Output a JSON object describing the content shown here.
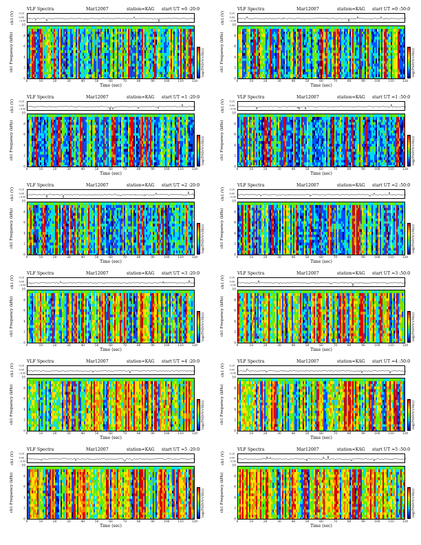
{
  "chart_data": [
    {
      "type": "heatmap",
      "label": "VLF Spectra",
      "date": "Mar12007",
      "station": "station=KAG",
      "start": "start UT =0 :20:0",
      "trace_label": "ch1 (V)",
      "ylabel": "ch1 Frequency (kHz)",
      "xlabel": "Time (sec)",
      "colorbar_label": "log(PSD(V/√Hz))",
      "x_ticks": [
        "0",
        "10",
        "20",
        "30",
        "40",
        "50",
        "60",
        "70",
        "80",
        "90",
        "100",
        "110",
        "120"
      ],
      "y_ticks": [
        "0",
        "2",
        "4",
        "6",
        "8",
        "10"
      ],
      "trace_ticks": [
        "0.20",
        "0.00",
        "−0.50"
      ],
      "colorbar_ticks": [
        "",
        "",
        ""
      ],
      "xlim": [
        0,
        120
      ],
      "ylim": [
        0,
        10
      ],
      "intensity": 0.55
    },
    {
      "type": "heatmap",
      "label": "VLF Spectra",
      "date": "Mar12007",
      "station": "station=KAG",
      "start": "start UT =0 :50:0",
      "trace_label": "ch1 (V)",
      "ylabel": "ch1 Frequency (kHz)",
      "xlabel": "Time (sec)",
      "colorbar_label": "log(PSD(V/√Hz))",
      "x_ticks": [
        "0",
        "10",
        "20",
        "30",
        "40",
        "50",
        "60",
        "70",
        "80",
        "90",
        "100",
        "110",
        "120"
      ],
      "y_ticks": [
        "0",
        "2",
        "4",
        "6",
        "8",
        "10"
      ],
      "trace_ticks": [
        "0.20",
        "0.00",
        "−0.50"
      ],
      "colorbar_ticks": [
        "",
        "",
        ""
      ],
      "xlim": [
        0,
        120
      ],
      "ylim": [
        0,
        10
      ],
      "intensity": 0.55
    },
    {
      "type": "heatmap",
      "label": "VLF Spectra",
      "date": "Mar12007",
      "station": "station=KAG",
      "start": "start UT =1 :20:0",
      "trace_label": "ch1 (V)",
      "ylabel": "ch1 Frequency (kHz)",
      "xlabel": "Time (sec)",
      "colorbar_label": "log(PSD(V/√Hz))",
      "x_ticks": [
        "0",
        "10",
        "20",
        "30",
        "40",
        "50",
        "60",
        "70",
        "80",
        "90",
        "100",
        "110",
        "120"
      ],
      "y_ticks": [
        "0",
        "2",
        "4",
        "6",
        "8",
        "10"
      ],
      "trace_ticks": [
        "0.20",
        "0.00",
        "−0.50"
      ],
      "colorbar_ticks": [
        "",
        "",
        ""
      ],
      "xlim": [
        0,
        120
      ],
      "ylim": [
        0,
        10
      ],
      "intensity": 0.45
    },
    {
      "type": "heatmap",
      "label": "VLF Spectra",
      "date": "Mar12007",
      "station": "station=KAG",
      "start": "start UT =1 :50:0",
      "trace_label": "ch1 (V)",
      "ylabel": "ch1 Frequency (kHz)",
      "xlabel": "Time (sec)",
      "colorbar_label": "log(PSD(V/√Hz))",
      "x_ticks": [
        "0",
        "10",
        "20",
        "30",
        "40",
        "50",
        "60",
        "70",
        "80",
        "90",
        "100",
        "110",
        "120"
      ],
      "y_ticks": [
        "0",
        "2",
        "4",
        "6",
        "8",
        "10"
      ],
      "trace_ticks": [
        "0.20",
        "0.00",
        "−0.50"
      ],
      "colorbar_ticks": [
        "",
        "",
        ""
      ],
      "xlim": [
        0,
        120
      ],
      "ylim": [
        0,
        10
      ],
      "intensity": 0.42
    },
    {
      "type": "heatmap",
      "label": "VLF Spectra",
      "date": "Mar12007",
      "station": "station=KAG",
      "start": "start UT =2 :20:0",
      "trace_label": "ch1 (V)",
      "ylabel": "ch1 Frequency (kHz)",
      "xlabel": "Time (sec)",
      "colorbar_label": "log(PSD(V/√Hz))",
      "x_ticks": [
        "0",
        "10",
        "20",
        "30",
        "40",
        "50",
        "60",
        "70",
        "80",
        "90",
        "100",
        "110",
        "120"
      ],
      "y_ticks": [
        "0",
        "2",
        "4",
        "6",
        "8",
        "10"
      ],
      "trace_ticks": [
        "0.20",
        "0.00",
        "−0.50"
      ],
      "colorbar_ticks": [
        "",
        "",
        ""
      ],
      "xlim": [
        0,
        120
      ],
      "ylim": [
        0,
        10
      ],
      "intensity": 0.45
    },
    {
      "type": "heatmap",
      "label": "VLF Spectra",
      "date": "Mar12007",
      "station": "station=KAG",
      "start": "start UT =2 :50:0",
      "trace_label": "ch1 (V)",
      "ylabel": "ch1 Frequency (kHz)",
      "xlabel": "Time (sec)",
      "colorbar_label": "log(PSD(V/√Hz))",
      "x_ticks": [
        "0",
        "10",
        "20",
        "30",
        "40",
        "50",
        "60",
        "70",
        "80",
        "90",
        "100",
        "110",
        "120"
      ],
      "y_ticks": [
        "0",
        "2",
        "4",
        "6",
        "8",
        "10"
      ],
      "trace_ticks": [
        "0.20",
        "0.00",
        "−0.50"
      ],
      "colorbar_ticks": [
        "",
        "",
        ""
      ],
      "xlim": [
        0,
        120
      ],
      "ylim": [
        0,
        10
      ],
      "intensity": 0.5
    },
    {
      "type": "heatmap",
      "label": "VLF Spectra",
      "date": "Mar12007",
      "station": "station=KAG",
      "start": "start UT =3 :20:0",
      "trace_label": "ch1 (V)",
      "ylabel": "ch1 Frequency (kHz)",
      "xlabel": "Time (sec)",
      "colorbar_label": "log(PSD(V/√Hz))",
      "x_ticks": [
        "0",
        "10",
        "20",
        "30",
        "40",
        "50",
        "60",
        "70",
        "80",
        "90",
        "100",
        "110",
        "120"
      ],
      "y_ticks": [
        "0",
        "2",
        "4",
        "6",
        "8",
        "10"
      ],
      "trace_ticks": [
        "0.20",
        "0.00",
        "−0.50"
      ],
      "colorbar_ticks": [
        "",
        "",
        ""
      ],
      "xlim": [
        0,
        120
      ],
      "ylim": [
        0,
        10
      ],
      "intensity": 0.65
    },
    {
      "type": "heatmap",
      "label": "VLF Spectra",
      "date": "Mar12007",
      "station": "station=KAG",
      "start": "start UT =3 :50:0",
      "trace_label": "ch1 (V)",
      "ylabel": "ch1 Frequency (kHz)",
      "xlabel": "Time (sec)",
      "colorbar_label": "log(PSD(V/√Hz))",
      "x_ticks": [
        "0",
        "10",
        "20",
        "30",
        "40",
        "50",
        "60",
        "70",
        "80",
        "90",
        "100",
        "110",
        "120"
      ],
      "y_ticks": [
        "0",
        "2",
        "4",
        "6",
        "8",
        "10"
      ],
      "trace_ticks": [
        "0.20",
        "0.00",
        "−0.50"
      ],
      "colorbar_ticks": [
        "",
        "",
        ""
      ],
      "xlim": [
        0,
        120
      ],
      "ylim": [
        0,
        10
      ],
      "intensity": 0.75
    },
    {
      "type": "heatmap",
      "label": "VLF Spectra",
      "date": "Mar12007",
      "station": "station=KAG",
      "start": "start UT =4 :20:0",
      "trace_label": "ch1 (V)",
      "ylabel": "ch1 Frequency (kHz)",
      "xlabel": "Time (sec)",
      "colorbar_label": "log(PSD(V/√Hz))",
      "x_ticks": [
        "0",
        "10",
        "20",
        "30",
        "40",
        "50",
        "60",
        "70",
        "80",
        "90",
        "100",
        "110",
        "120"
      ],
      "y_ticks": [
        "0",
        "2",
        "4",
        "6",
        "8",
        "10"
      ],
      "trace_ticks": [
        "0.20",
        "0.00",
        "−0.50"
      ],
      "colorbar_ticks": [
        "",
        "",
        ""
      ],
      "xlim": [
        0,
        120
      ],
      "ylim": [
        0,
        10
      ],
      "intensity": 0.8
    },
    {
      "type": "heatmap",
      "label": "VLF Spectra",
      "date": "Mar12007",
      "station": "station=KAG",
      "start": "start UT =4 :50:0",
      "trace_label": "ch1 (V)",
      "ylabel": "ch1 Frequency (kHz)",
      "xlabel": "Time (sec)",
      "colorbar_label": "log(PSD(V/√Hz))",
      "x_ticks": [
        "0",
        "10",
        "20",
        "30",
        "40",
        "50",
        "60",
        "70",
        "80",
        "90",
        "100",
        "110",
        "120"
      ],
      "y_ticks": [
        "0",
        "2",
        "4",
        "6",
        "8",
        "10"
      ],
      "trace_ticks": [
        "0.20",
        "0.00",
        "−0.50"
      ],
      "colorbar_ticks": [
        "",
        "",
        ""
      ],
      "xlim": [
        0,
        120
      ],
      "ylim": [
        0,
        10
      ],
      "intensity": 0.8
    },
    {
      "type": "heatmap",
      "label": "VLF Spectra",
      "date": "Mar12007",
      "station": "station=KAG",
      "start": "start UT =5 :20:0",
      "trace_label": "ch1 (V)",
      "ylabel": "ch1 Frequency (kHz)",
      "xlabel": "Time (sec)",
      "colorbar_label": "log(PSD(V/√Hz))",
      "x_ticks": [
        "0",
        "10",
        "20",
        "30",
        "40",
        "50",
        "60",
        "70",
        "80",
        "90",
        "100",
        "110",
        "120"
      ],
      "y_ticks": [
        "0",
        "2",
        "4",
        "6",
        "8",
        "10"
      ],
      "trace_ticks": [
        "0.20",
        "0.00",
        "−0.50"
      ],
      "colorbar_ticks": [
        "",
        "",
        ""
      ],
      "xlim": [
        0,
        120
      ],
      "ylim": [
        0,
        10
      ],
      "intensity": 0.8
    },
    {
      "type": "heatmap",
      "label": "VLF Spectra",
      "date": "Mar12007",
      "station": "station=KAG",
      "start": "start UT =5 :50:0",
      "trace_label": "ch1 (V)",
      "ylabel": "ch1 Frequency (kHz)",
      "xlabel": "Time (sec)",
      "colorbar_label": "log(PSD(V/√Hz))",
      "x_ticks": [
        "0",
        "10",
        "20",
        "30",
        "40",
        "50",
        "60",
        "70",
        "80",
        "90",
        "100",
        "110",
        "120"
      ],
      "y_ticks": [
        "0",
        "2",
        "4",
        "6",
        "8",
        "10"
      ],
      "trace_ticks": [
        "0.20",
        "0.00",
        "−0.50"
      ],
      "colorbar_ticks": [
        "",
        "",
        ""
      ],
      "xlim": [
        0,
        120
      ],
      "ylim": [
        0,
        10
      ],
      "intensity": 0.8
    }
  ],
  "colors": {
    "scale": [
      "#000080",
      "#0050ff",
      "#00ddee",
      "#66ee00",
      "#ffe400",
      "#ff7a00",
      "#d40000"
    ]
  }
}
